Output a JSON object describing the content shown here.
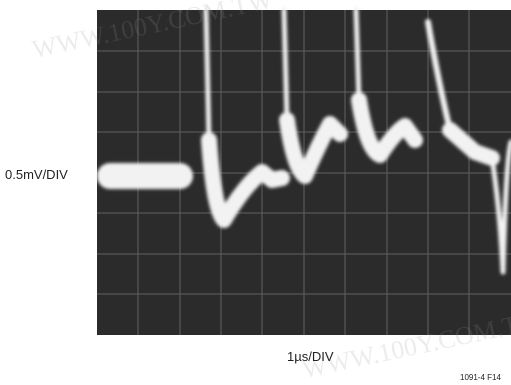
{
  "y_scale_label": "0.5mV/DIV",
  "x_scale_label": "1µs/DIV",
  "figure_id": "1091-4 F14",
  "watermark": "WWW.100Y.COM.TW"
}
